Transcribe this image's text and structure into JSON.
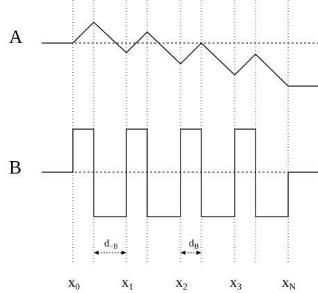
{
  "signals": {
    "a_label": "A",
    "b_label": "B"
  },
  "intervals": {
    "d_neg_base": "d",
    "d_neg_sub": "−B",
    "d_pos_base": "d",
    "d_pos_sub": "B"
  },
  "x_axis": {
    "ticks": [
      {
        "base": "x",
        "sub": "0"
      },
      {
        "base": "x",
        "sub": "1"
      },
      {
        "base": "x",
        "sub": "2"
      },
      {
        "base": "x",
        "sub": "3"
      },
      {
        "base": "x",
        "sub": "N"
      }
    ]
  }
}
